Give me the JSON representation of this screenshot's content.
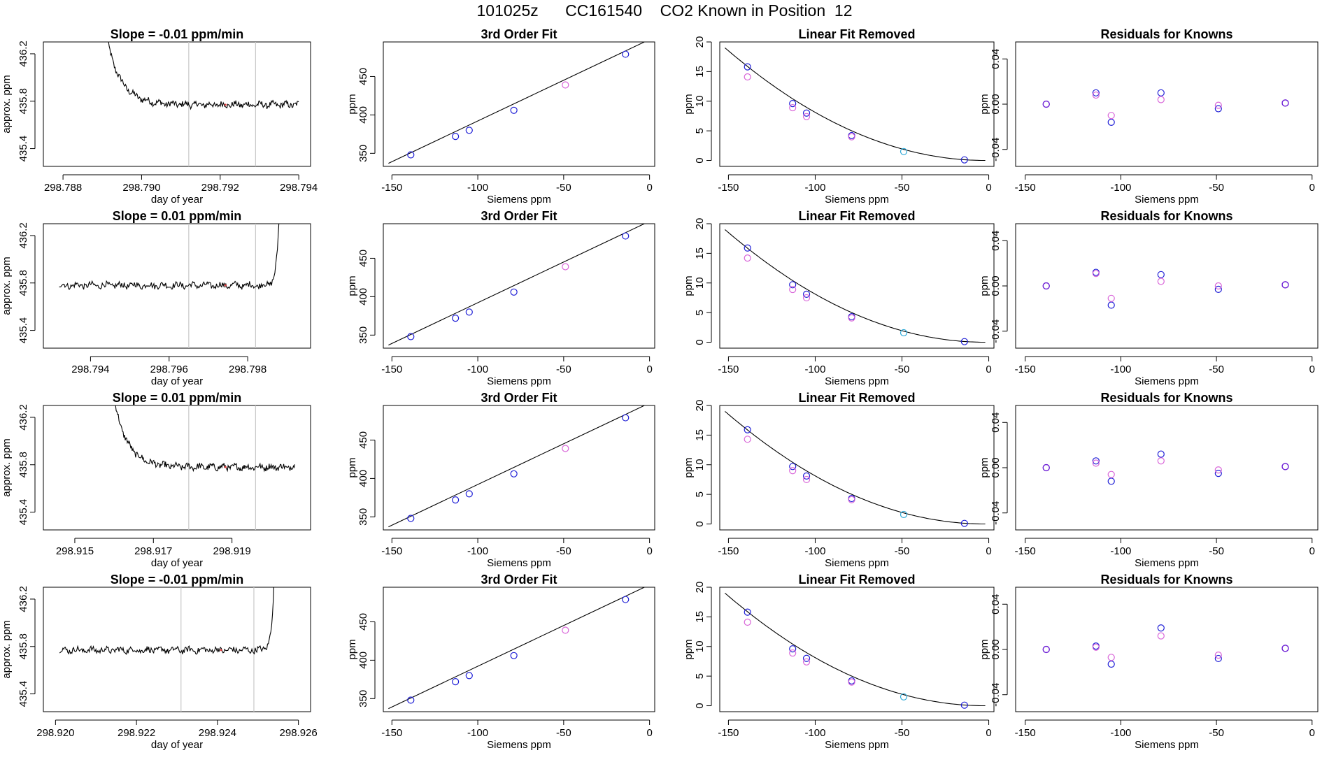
{
  "page_title": "101025z      CC161540    CO2 Known in Position  12",
  "colors": {
    "line": "#000000",
    "vline": "#c8c8c8",
    "blue": "#1f1fd6",
    "magenta": "#d966d9",
    "purple": "#6a1fd6",
    "cyan": "#2aa7d6"
  },
  "chart_data": [
    {
      "type": "line",
      "row": 0,
      "title": "Slope =  -0.01  ppm/min",
      "xlabel": "day of year",
      "ylabel": "approx. ppm",
      "xlim": [
        298.7875,
        298.7943
      ],
      "ylim": [
        435.25,
        436.3
      ],
      "xticks": [
        "298.788",
        "298.790",
        "298.792",
        "298.794"
      ],
      "xtick_values": [
        298.788,
        298.79,
        298.792,
        298.794
      ],
      "yticks": [
        "435.4",
        "435.8",
        "436.2"
      ],
      "ytick_values": [
        435.4,
        435.8,
        436.2
      ],
      "vlines": [
        298.7912,
        298.7929
      ],
      "series": [
        {
          "profile": "drop_start",
          "x_start": 298.7891,
          "x_end": 298.794,
          "level": 435.77,
          "start_value": 436.35
        }
      ]
    },
    {
      "type": "line",
      "row": 1,
      "title": "Slope =  0.01  ppm/min",
      "xlabel": "day of year",
      "ylabel": "approx. ppm",
      "xlim": [
        298.7928,
        298.7996
      ],
      "ylim": [
        435.25,
        436.3
      ],
      "xticks": [
        "298.794",
        "298.796",
        "298.798"
      ],
      "xtick_values": [
        298.794,
        298.796,
        298.798
      ],
      "yticks": [
        "435.4",
        "435.8",
        "436.2"
      ],
      "ytick_values": [
        435.4,
        435.8,
        436.2
      ],
      "vlines": [
        298.7965,
        298.7982
      ],
      "series": [
        {
          "profile": "rise_end",
          "x_start": 298.7932,
          "x_end": 298.7988,
          "level": 435.78,
          "end_value": 436.35
        }
      ]
    },
    {
      "type": "line",
      "row": 2,
      "title": "Slope =  0.01  ppm/min",
      "xlabel": "day of year",
      "ylabel": "approx. ppm",
      "xlim": [
        298.9142,
        298.921
      ],
      "ylim": [
        435.25,
        436.3
      ],
      "xticks": [
        "298.915",
        "298.917",
        "298.919"
      ],
      "xtick_values": [
        298.915,
        298.917,
        298.919
      ],
      "yticks": [
        "435.4",
        "435.8",
        "436.2"
      ],
      "ytick_values": [
        435.4,
        435.8,
        436.2
      ],
      "vlines": [
        298.9179,
        298.9196
      ],
      "series": [
        {
          "profile": "drop_start",
          "x_start": 298.916,
          "x_end": 298.9206,
          "level": 435.78,
          "start_value": 436.35
        }
      ]
    },
    {
      "type": "line",
      "row": 3,
      "title": "Slope =  -0.01  ppm/min",
      "xlabel": "day of year",
      "ylabel": "approx. ppm",
      "xlim": [
        298.9197,
        298.9263
      ],
      "ylim": [
        435.25,
        436.3
      ],
      "xticks": [
        "298.920",
        "298.922",
        "298.924",
        "298.926"
      ],
      "xtick_values": [
        298.92,
        298.922,
        298.924,
        298.926
      ],
      "yticks": [
        "435.4",
        "435.8",
        "436.2"
      ],
      "ytick_values": [
        435.4,
        435.8,
        436.2
      ],
      "vlines": [
        298.9231,
        298.9249
      ],
      "series": [
        {
          "profile": "rise_end",
          "x_start": 298.9201,
          "x_end": 298.9254,
          "level": 435.77,
          "end_value": 436.35
        }
      ]
    },
    {
      "type": "scatter",
      "row": 0,
      "title": "3rd Order Fit",
      "xlabel": "Siemens ppm",
      "ylabel": "ppm",
      "xlim": [
        -155,
        3
      ],
      "ylim": [
        333,
        495
      ],
      "xticks": [
        "-150",
        "-100",
        "-50",
        "0"
      ],
      "xtick_values": [
        -150,
        -100,
        -50,
        0
      ],
      "yticks": [
        "350",
        "400",
        "450"
      ],
      "ytick_values": [
        350,
        400,
        450
      ],
      "fit_line": [
        [
          -152,
          337
        ],
        [
          -3,
          495
        ]
      ],
      "series": [
        {
          "x": [
            -139,
            -113,
            -105,
            -79,
            -14
          ],
          "y": [
            348,
            372,
            380,
            406,
            479
          ],
          "color": "blue"
        },
        {
          "x": [
            -49
          ],
          "y": [
            439
          ],
          "color": "magenta"
        }
      ]
    },
    {
      "type": "scatter",
      "row": 1,
      "title": "3rd Order Fit",
      "xlabel": "Siemens ppm",
      "ylabel": "ppm",
      "xlim": [
        -155,
        3
      ],
      "ylim": [
        333,
        495
      ],
      "xticks": [
        "-150",
        "-100",
        "-50",
        "0"
      ],
      "xtick_values": [
        -150,
        -100,
        -50,
        0
      ],
      "yticks": [
        "350",
        "400",
        "450"
      ],
      "ytick_values": [
        350,
        400,
        450
      ],
      "fit_line": [
        [
          -152,
          337
        ],
        [
          -3,
          495
        ]
      ],
      "series": [
        {
          "x": [
            -139,
            -113,
            -105,
            -79,
            -14
          ],
          "y": [
            348,
            372,
            380,
            406,
            479
          ],
          "color": "blue"
        },
        {
          "x": [
            -49
          ],
          "y": [
            439
          ],
          "color": "magenta"
        }
      ]
    },
    {
      "type": "scatter",
      "row": 2,
      "title": "3rd Order Fit",
      "xlabel": "Siemens ppm",
      "ylabel": "ppm",
      "xlim": [
        -155,
        3
      ],
      "ylim": [
        333,
        495
      ],
      "xticks": [
        "-150",
        "-100",
        "-50",
        "0"
      ],
      "xtick_values": [
        -150,
        -100,
        -50,
        0
      ],
      "yticks": [
        "350",
        "400",
        "450"
      ],
      "ytick_values": [
        350,
        400,
        450
      ],
      "fit_line": [
        [
          -152,
          337
        ],
        [
          -3,
          495
        ]
      ],
      "series": [
        {
          "x": [
            -139,
            -113,
            -105,
            -79,
            -14
          ],
          "y": [
            348,
            372,
            380,
            406,
            479
          ],
          "color": "blue"
        },
        {
          "x": [
            -49
          ],
          "y": [
            439
          ],
          "color": "magenta"
        }
      ]
    },
    {
      "type": "scatter",
      "row": 3,
      "title": "3rd Order Fit",
      "xlabel": "Siemens ppm",
      "ylabel": "ppm",
      "xlim": [
        -155,
        3
      ],
      "ylim": [
        333,
        495
      ],
      "xticks": [
        "-150",
        "-100",
        "-50",
        "0"
      ],
      "xtick_values": [
        -150,
        -100,
        -50,
        0
      ],
      "yticks": [
        "350",
        "400",
        "450"
      ],
      "ytick_values": [
        350,
        400,
        450
      ],
      "fit_line": [
        [
          -152,
          337
        ],
        [
          -3,
          495
        ]
      ],
      "series": [
        {
          "x": [
            -139,
            -113,
            -105,
            -79,
            -14
          ],
          "y": [
            348,
            372,
            380,
            406,
            479
          ],
          "color": "blue"
        },
        {
          "x": [
            -49
          ],
          "y": [
            439
          ],
          "color": "magenta"
        }
      ]
    },
    {
      "type": "scatter",
      "row": 0,
      "title": "Linear Fit Removed",
      "xlabel": "Siemens ppm",
      "ylabel": "ppm",
      "xlim": [
        -155,
        3
      ],
      "ylim": [
        -1,
        20
      ],
      "xticks": [
        "-150",
        "-100",
        "-50",
        "0"
      ],
      "xtick_values": [
        -150,
        -100,
        -50,
        0
      ],
      "yticks": [
        "0",
        "5",
        "10",
        "15",
        "20"
      ],
      "ytick_values": [
        0,
        5,
        10,
        15,
        20
      ],
      "curve": {
        "x0": -152,
        "x1": -2,
        "vertex": -2,
        "a": 0.000845
      },
      "series": [
        {
          "x": [
            -139,
            -113,
            -105,
            -79,
            -14
          ],
          "y": [
            15.8,
            9.6,
            8.0,
            4.2,
            0.1
          ],
          "color": "blue"
        },
        {
          "x": [
            -139,
            -113,
            -105,
            -79
          ],
          "y": [
            14.1,
            8.9,
            7.4,
            4.0
          ],
          "color": "magenta"
        },
        {
          "x": [
            -49
          ],
          "y": [
            1.5
          ],
          "color": "cyan"
        }
      ]
    },
    {
      "type": "scatter",
      "row": 1,
      "title": "Linear Fit Removed",
      "xlabel": "Siemens ppm",
      "ylabel": "ppm",
      "xlim": [
        -155,
        3
      ],
      "ylim": [
        -1,
        20
      ],
      "xticks": [
        "-150",
        "-100",
        "-50",
        "0"
      ],
      "xtick_values": [
        -150,
        -100,
        -50,
        0
      ],
      "yticks": [
        "0",
        "5",
        "10",
        "15",
        "20"
      ],
      "ytick_values": [
        0,
        5,
        10,
        15,
        20
      ],
      "curve": {
        "x0": -152,
        "x1": -2,
        "vertex": -2,
        "a": 0.000845
      },
      "series": [
        {
          "x": [
            -139,
            -113,
            -105,
            -79,
            -14
          ],
          "y": [
            15.9,
            9.7,
            8.1,
            4.3,
            0.1
          ],
          "color": "blue"
        },
        {
          "x": [
            -139,
            -113,
            -105,
            -79
          ],
          "y": [
            14.2,
            8.9,
            7.5,
            4.1
          ],
          "color": "magenta"
        },
        {
          "x": [
            -49
          ],
          "y": [
            1.6
          ],
          "color": "cyan"
        }
      ]
    },
    {
      "type": "scatter",
      "row": 2,
      "title": "Linear Fit Removed",
      "xlabel": "Siemens ppm",
      "ylabel": "ppm",
      "xlim": [
        -155,
        3
      ],
      "ylim": [
        -1,
        20
      ],
      "xticks": [
        "-150",
        "-100",
        "-50",
        "0"
      ],
      "xtick_values": [
        -150,
        -100,
        -50,
        0
      ],
      "yticks": [
        "0",
        "5",
        "10",
        "15",
        "20"
      ],
      "ytick_values": [
        0,
        5,
        10,
        15,
        20
      ],
      "curve": {
        "x0": -152,
        "x1": -2,
        "vertex": -2,
        "a": 0.000845
      },
      "series": [
        {
          "x": [
            -139,
            -113,
            -105,
            -79,
            -14
          ],
          "y": [
            15.9,
            9.7,
            8.1,
            4.3,
            0.1
          ],
          "color": "blue"
        },
        {
          "x": [
            -139,
            -113,
            -105,
            -79
          ],
          "y": [
            14.3,
            9.0,
            7.5,
            4.1
          ],
          "color": "magenta"
        },
        {
          "x": [
            -49
          ],
          "y": [
            1.6
          ],
          "color": "cyan"
        }
      ]
    },
    {
      "type": "scatter",
      "row": 3,
      "title": "Linear Fit Removed",
      "xlabel": "Siemens ppm",
      "ylabel": "ppm",
      "xlim": [
        -155,
        3
      ],
      "ylim": [
        -1,
        20
      ],
      "xticks": [
        "-150",
        "-100",
        "-50",
        "0"
      ],
      "xtick_values": [
        -150,
        -100,
        -50,
        0
      ],
      "yticks": [
        "0",
        "5",
        "10",
        "15",
        "20"
      ],
      "ytick_values": [
        0,
        5,
        10,
        15,
        20
      ],
      "curve": {
        "x0": -152,
        "x1": -2,
        "vertex": -2,
        "a": 0.000845
      },
      "series": [
        {
          "x": [
            -139,
            -113,
            -105,
            -79,
            -14
          ],
          "y": [
            15.8,
            9.6,
            8.0,
            4.2,
            0.1
          ],
          "color": "blue"
        },
        {
          "x": [
            -139,
            -113,
            -105,
            -79
          ],
          "y": [
            14.1,
            8.9,
            7.4,
            4.0
          ],
          "color": "magenta"
        },
        {
          "x": [
            -49
          ],
          "y": [
            1.5
          ],
          "color": "cyan"
        }
      ]
    },
    {
      "type": "scatter",
      "row": 0,
      "title": "Residuals for Knowns",
      "xlabel": "",
      "ylabel": "ppm",
      "xlim": [
        -155,
        3
      ],
      "ylim": [
        -0.055,
        0.055
      ],
      "xticks": [
        "-150",
        "-100",
        "-50",
        "0"
      ],
      "xtick_values": [
        -150,
        -100,
        -50,
        0
      ],
      "yticks": [
        "-0.04",
        "0.00",
        "0.04"
      ],
      "ytick_values": [
        -0.04,
        0.0,
        0.04
      ],
      "series": [
        {
          "x": [
            -139,
            -113,
            -105,
            -79,
            -49,
            -14
          ],
          "y": [
            0.0,
            0.01,
            -0.016,
            0.01,
            -0.004,
            0.001
          ],
          "color": "blue"
        },
        {
          "x": [
            -139,
            -113,
            -105,
            -79,
            -49,
            -14
          ],
          "y": [
            0.0,
            0.008,
            -0.01,
            0.004,
            -0.001,
            0.001
          ],
          "color": "magenta"
        },
        {
          "x": [
            -139,
            -14
          ],
          "y": [
            0.0,
            0.001
          ],
          "color": "purple"
        }
      ]
    },
    {
      "type": "scatter",
      "row": 1,
      "title": "Residuals for Knowns",
      "xlabel": "",
      "ylabel": "ppm",
      "xlim": [
        -155,
        3
      ],
      "ylim": [
        -0.055,
        0.055
      ],
      "xticks": [
        "-150",
        "-100",
        "-50",
        "0"
      ],
      "xtick_values": [
        -150,
        -100,
        -50,
        0
      ],
      "yticks": [
        "-0.04",
        "0.00",
        "0.04"
      ],
      "ytick_values": [
        -0.04,
        0.0,
        0.04
      ],
      "series": [
        {
          "x": [
            -139,
            -113,
            -105,
            -79,
            -49,
            -14
          ],
          "y": [
            0.0,
            0.012,
            -0.017,
            0.01,
            -0.003,
            0.001
          ],
          "color": "blue"
        },
        {
          "x": [
            -139,
            -113,
            -105,
            -79,
            -49,
            -14
          ],
          "y": [
            0.0,
            0.011,
            -0.011,
            0.004,
            0.0,
            0.001
          ],
          "color": "magenta"
        },
        {
          "x": [
            -139,
            -14
          ],
          "y": [
            0.0,
            0.001
          ],
          "color": "purple"
        }
      ]
    },
    {
      "type": "scatter",
      "row": 2,
      "title": "Residuals for Knowns",
      "xlabel": "",
      "ylabel": "ppm",
      "xlim": [
        -155,
        3
      ],
      "ylim": [
        -0.055,
        0.055
      ],
      "xticks": [
        "-150",
        "-100",
        "-50",
        "0"
      ],
      "xtick_values": [
        -150,
        -100,
        -50,
        0
      ],
      "yticks": [
        "-0.04",
        "0.00",
        "0.04"
      ],
      "ytick_values": [
        -0.04,
        0.0,
        0.04
      ],
      "series": [
        {
          "x": [
            -139,
            -113,
            -105,
            -79,
            -49,
            -14
          ],
          "y": [
            0.0,
            0.006,
            -0.012,
            0.012,
            -0.005,
            0.001
          ],
          "color": "blue"
        },
        {
          "x": [
            -139,
            -113,
            -105,
            -79,
            -49,
            -14
          ],
          "y": [
            0.0,
            0.004,
            -0.006,
            0.006,
            -0.002,
            0.001
          ],
          "color": "magenta"
        },
        {
          "x": [
            -139,
            -14
          ],
          "y": [
            0.0,
            0.001
          ],
          "color": "purple"
        }
      ]
    },
    {
      "type": "scatter",
      "row": 3,
      "title": "Residuals for Knowns",
      "xlabel": "",
      "ylabel": "ppm",
      "xlim": [
        -155,
        3
      ],
      "ylim": [
        -0.055,
        0.055
      ],
      "xticks": [
        "-150",
        "-100",
        "-50",
        "0"
      ],
      "xtick_values": [
        -150,
        -100,
        -50,
        0
      ],
      "yticks": [
        "-0.04",
        "0.00",
        "0.04"
      ],
      "ytick_values": [
        -0.04,
        0.0,
        0.04
      ],
      "series": [
        {
          "x": [
            -139,
            -113,
            -105,
            -79,
            -49,
            -14
          ],
          "y": [
            0.0,
            0.003,
            -0.013,
            0.019,
            -0.008,
            0.001
          ],
          "color": "blue"
        },
        {
          "x": [
            -139,
            -113,
            -105,
            -79,
            -49,
            -14
          ],
          "y": [
            0.0,
            0.002,
            -0.007,
            0.012,
            -0.005,
            0.001
          ],
          "color": "magenta"
        },
        {
          "x": [
            -139,
            -14
          ],
          "y": [
            0.0,
            0.001
          ],
          "color": "purple"
        }
      ]
    }
  ],
  "xlabel_residuals": "Siemens ppm"
}
